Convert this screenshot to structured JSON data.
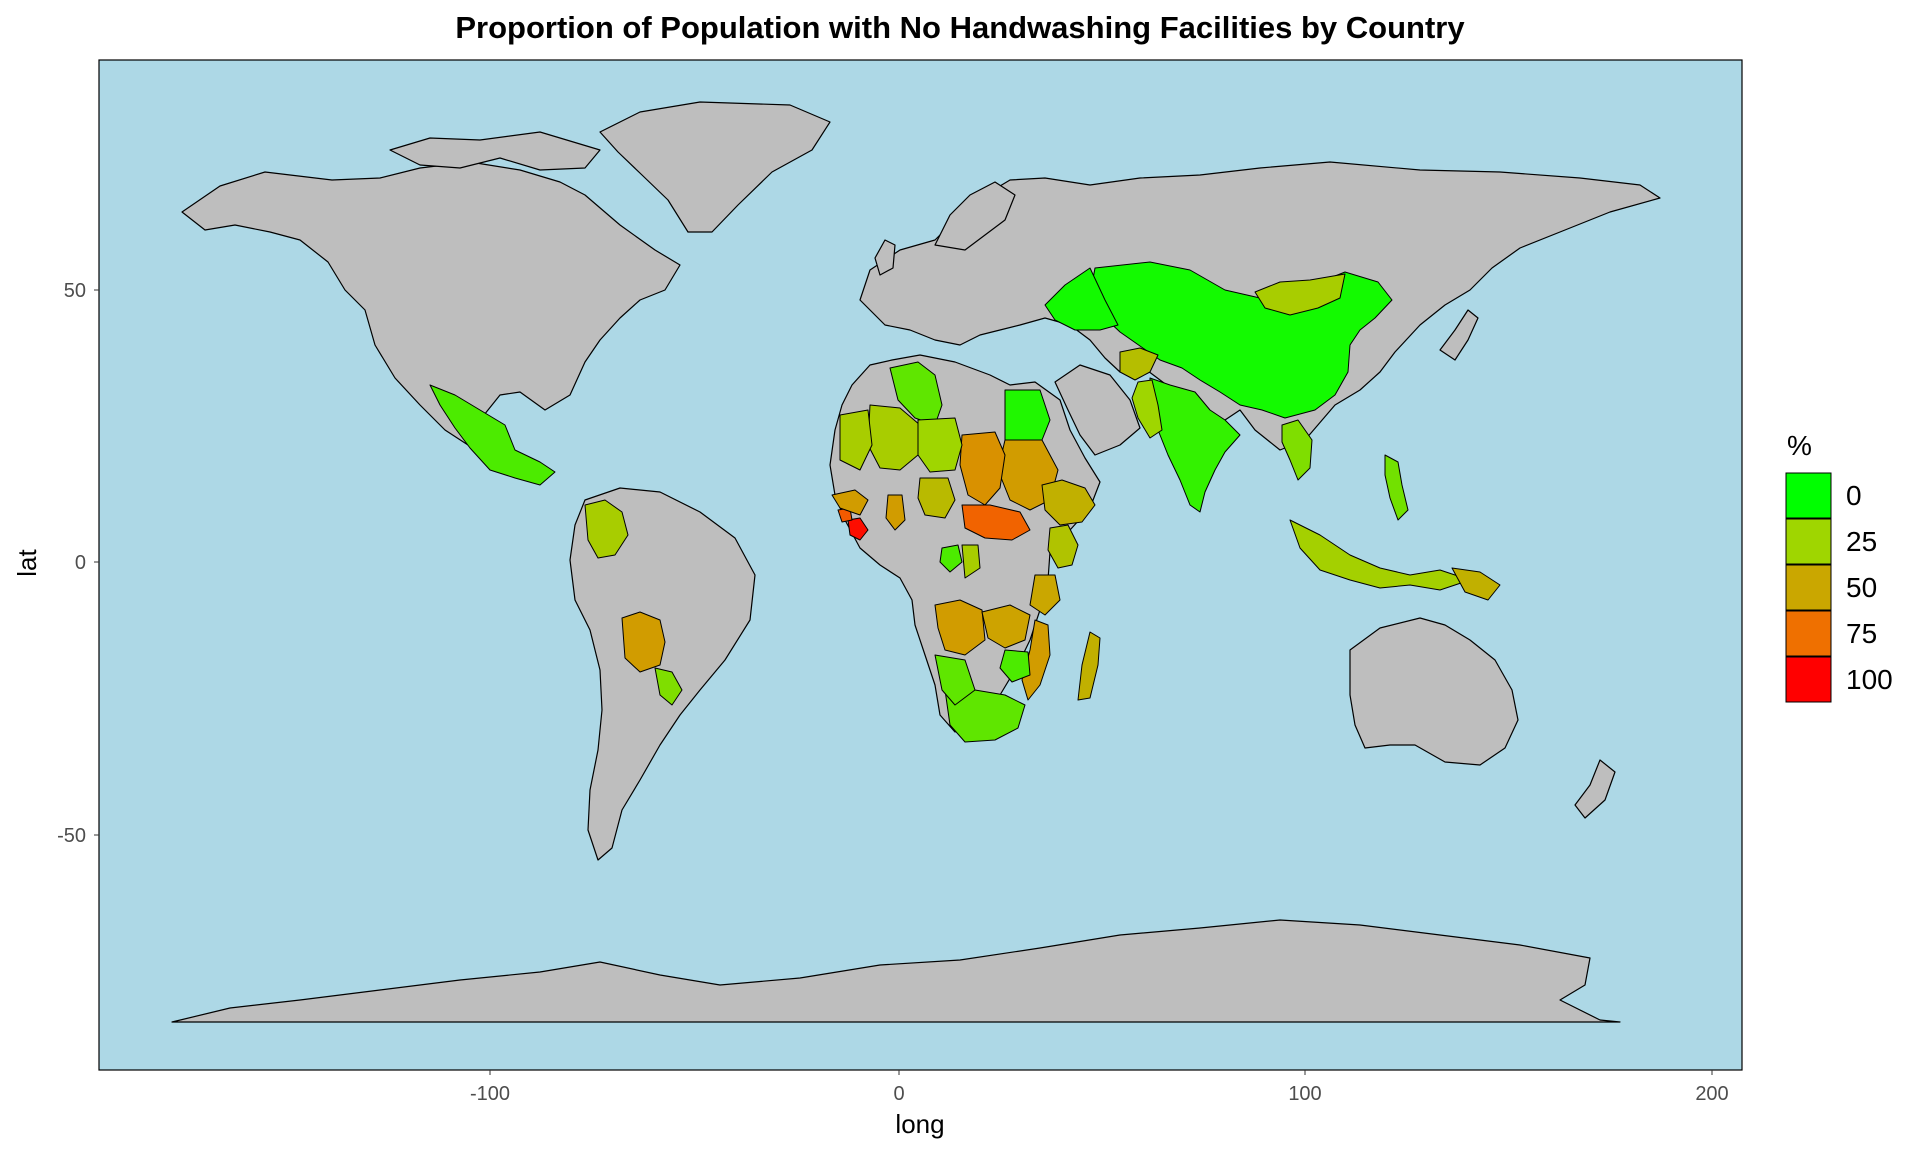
{
  "title": "Proportion of Population with No Handwashing Facilities by Country",
  "xlabel": "long",
  "ylabel": "lat",
  "x_ticks": [
    "-100",
    "0",
    "100",
    "200"
  ],
  "y_ticks": [
    "50",
    "0",
    "-50"
  ],
  "legend": {
    "title": "%",
    "entries": [
      {
        "label": "0",
        "color": "#00ff00"
      },
      {
        "label": "25",
        "color": "#9fd600"
      },
      {
        "label": "50",
        "color": "#caa700"
      },
      {
        "label": "75",
        "color": "#ef7000"
      },
      {
        "label": "100",
        "color": "#ff0000"
      }
    ]
  },
  "colors": {
    "ocean": "#add8e6",
    "land_no_data": "#bebebe",
    "border": "#000000"
  },
  "chart_data": {
    "type": "choropleth-map",
    "title": "Proportion of Population with No Handwashing Facilities by Country",
    "xlabel": "long",
    "ylabel": "lat",
    "xlim": [
      -190,
      210
    ],
    "ylim": [
      -93,
      92
    ],
    "x_ticks": [
      -100,
      0,
      100,
      200
    ],
    "y_ticks": [
      50,
      0,
      -50
    ],
    "fill_scale": {
      "name": "%",
      "range": [
        0,
        100
      ],
      "low": "#00ff00",
      "high": "#ff0000"
    },
    "regions": [
      {
        "name": "China",
        "value": 3
      },
      {
        "name": "Kazakhstan",
        "value": 3
      },
      {
        "name": "Mongolia",
        "value": 30
      },
      {
        "name": "India",
        "value": 8
      },
      {
        "name": "Afghanistan",
        "value": 38
      },
      {
        "name": "Pakistan",
        "value": 25
      },
      {
        "name": "Myanmar",
        "value": 20
      },
      {
        "name": "Indonesia",
        "value": 28
      },
      {
        "name": "Papua New Guinea",
        "value": 45
      },
      {
        "name": "Philippines",
        "value": 18
      },
      {
        "name": "Mexico",
        "value": 12
      },
      {
        "name": "Colombia",
        "value": 30
      },
      {
        "name": "Bolivia",
        "value": 55
      },
      {
        "name": "Paraguay",
        "value": 20
      },
      {
        "name": "Algeria",
        "value": 15
      },
      {
        "name": "Egypt",
        "value": 5
      },
      {
        "name": "Sudan",
        "value": 55
      },
      {
        "name": "Chad",
        "value": 60
      },
      {
        "name": "Central African Republic",
        "value": 78
      },
      {
        "name": "Ethiopia",
        "value": 45
      },
      {
        "name": "Kenya",
        "value": 35
      },
      {
        "name": "Angola",
        "value": 55
      },
      {
        "name": "Zambia",
        "value": 52
      },
      {
        "name": "Mozambique",
        "value": 55
      },
      {
        "name": "Madagascar",
        "value": 45
      },
      {
        "name": "South Africa",
        "value": 15
      },
      {
        "name": "Namibia",
        "value": 15
      },
      {
        "name": "Liberia",
        "value": 97
      },
      {
        "name": "Sierra Leone",
        "value": 80
      },
      {
        "name": "Guinea",
        "value": 55
      },
      {
        "name": "Mali",
        "value": 30
      },
      {
        "name": "Niger",
        "value": 25
      },
      {
        "name": "Mauritania",
        "value": 30
      },
      {
        "name": "Ghana",
        "value": 55
      },
      {
        "name": "Nigeria",
        "value": 40
      },
      {
        "name": "Gabon",
        "value": 12
      },
      {
        "name": "Congo",
        "value": 30
      },
      {
        "name": "Tanzania",
        "value": 50
      },
      {
        "name": "Zimbabwe",
        "value": 12
      }
    ]
  }
}
